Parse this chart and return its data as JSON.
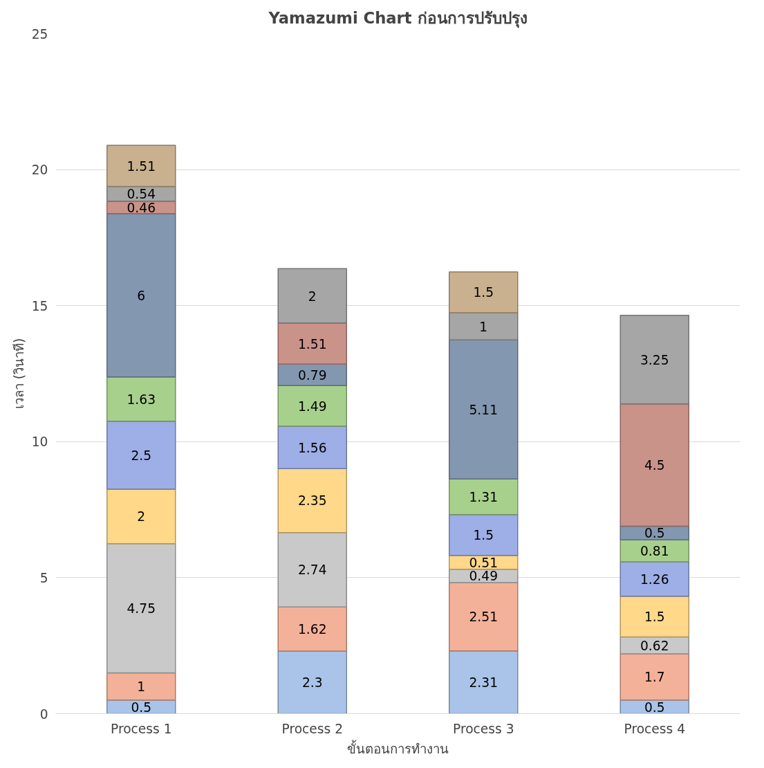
{
  "chart_data": {
    "type": "bar",
    "stacked": true,
    "title": "Yamazumi Chart ก่อนการปรับปรุง",
    "xlabel": "ขั้นตอนการทำงาน",
    "ylabel": "เวลา (วินาที)",
    "categories": [
      "Process 1",
      "Process 2",
      "Process 3",
      "Process 4"
    ],
    "ylim": [
      0,
      25
    ],
    "yticks": [
      0,
      5,
      10,
      15,
      20,
      25
    ],
    "grid": "y",
    "data_labels": true,
    "series": [
      {
        "color": "#a9c4e8",
        "values": [
          0.5,
          2.3,
          2.31,
          0.5
        ]
      },
      {
        "color": "#f4b199",
        "values": [
          1,
          1.62,
          2.51,
          1.7
        ]
      },
      {
        "color": "#c9c9c9",
        "values": [
          4.75,
          2.74,
          0.49,
          0.62
        ]
      },
      {
        "color": "#ffd88a",
        "values": [
          2,
          2.35,
          0.51,
          1.5
        ]
      },
      {
        "color": "#9eaee6",
        "values": [
          2.5,
          1.56,
          1.5,
          1.26
        ]
      },
      {
        "color": "#a8d08d",
        "values": [
          1.63,
          1.49,
          1.31,
          0.81
        ]
      },
      {
        "color": "#8497b0",
        "values": [
          6,
          0.79,
          5.11,
          0.5
        ]
      },
      {
        "color": "#c9938a",
        "values": [
          0.46,
          1.51,
          null,
          4.5
        ]
      },
      {
        "color": "#a6a6a6",
        "values": [
          0.54,
          2,
          1,
          3.25
        ]
      },
      {
        "color": "#c9b18f",
        "values": [
          1.51,
          null,
          1.5,
          null
        ]
      }
    ]
  }
}
